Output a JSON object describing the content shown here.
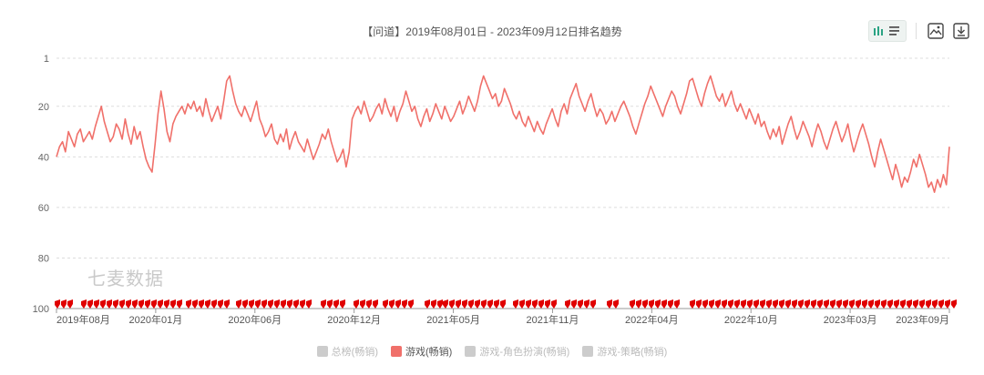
{
  "title": "【问道】2019年08月01日 - 2023年09月12日排名趋势",
  "watermark": "七麦数据",
  "toolbar": {
    "icons": [
      "bar-chart-icon",
      "list-icon",
      "save-image-icon",
      "download-icon"
    ]
  },
  "legend": [
    {
      "label": "总榜(畅销)",
      "active": false,
      "color": "#cccccc"
    },
    {
      "label": "游戏(畅销)",
      "active": true,
      "color": "#f0706a"
    },
    {
      "label": "游戏-角色扮演(畅销)",
      "active": false,
      "color": "#cccccc"
    },
    {
      "label": "游戏-策略(畅销)",
      "active": false,
      "color": "#cccccc"
    }
  ],
  "chart_data": {
    "type": "line",
    "y_inverted": true,
    "ylim": [
      1,
      100
    ],
    "yticks": [
      1,
      20,
      40,
      60,
      80,
      100
    ],
    "xticks": [
      "2019年08月",
      "2020年01月",
      "2020年06月",
      "2020年12月",
      "2021年05月",
      "2021年11月",
      "2022年04月",
      "2022年10月",
      "2023年03月",
      "2023年09月"
    ],
    "series": [
      {
        "name": "游戏(畅销)",
        "color": "#f0706a",
        "values": [
          40,
          36,
          34,
          38,
          30,
          33,
          36,
          31,
          29,
          34,
          32,
          30,
          33,
          28,
          24,
          20,
          26,
          30,
          34,
          32,
          27,
          29,
          33,
          25,
          31,
          35,
          28,
          33,
          30,
          36,
          41,
          44,
          46,
          35,
          23,
          14,
          21,
          30,
          34,
          27,
          24,
          22,
          20,
          23,
          19,
          21,
          18,
          22,
          20,
          24,
          17,
          22,
          26,
          23,
          20,
          25,
          18,
          10,
          8,
          14,
          19,
          22,
          24,
          20,
          23,
          26,
          22,
          18,
          25,
          28,
          32,
          30,
          27,
          33,
          35,
          31,
          34,
          29,
          37,
          33,
          30,
          34,
          36,
          38,
          33,
          37,
          41,
          38,
          35,
          31,
          33,
          29,
          34,
          38,
          42,
          40,
          37,
          44,
          38,
          25,
          22,
          20,
          23,
          18,
          22,
          26,
          24,
          21,
          19,
          23,
          17,
          21,
          24,
          20,
          26,
          22,
          19,
          14,
          18,
          22,
          20,
          25,
          28,
          24,
          21,
          26,
          23,
          19,
          22,
          25,
          20,
          23,
          26,
          24,
          21,
          18,
          23,
          20,
          16,
          19,
          22,
          18,
          12,
          8,
          11,
          14,
          17,
          15,
          20,
          18,
          13,
          16,
          19,
          23,
          25,
          22,
          26,
          28,
          24,
          27,
          30,
          26,
          29,
          31,
          27,
          24,
          21,
          25,
          28,
          22,
          19,
          23,
          17,
          14,
          11,
          16,
          19,
          22,
          18,
          15,
          20,
          24,
          21,
          23,
          27,
          25,
          22,
          26,
          23,
          20,
          18,
          21,
          24,
          28,
          31,
          27,
          23,
          19,
          16,
          12,
          15,
          18,
          21,
          24,
          20,
          17,
          14,
          16,
          20,
          23,
          19,
          15,
          10,
          9,
          13,
          17,
          20,
          15,
          11,
          8,
          12,
          16,
          18,
          15,
          20,
          17,
          14,
          19,
          22,
          19,
          22,
          25,
          21,
          24,
          27,
          23,
          28,
          26,
          30,
          33,
          29,
          32,
          28,
          35,
          31,
          27,
          24,
          29,
          33,
          30,
          26,
          29,
          32,
          36,
          31,
          27,
          30,
          34,
          37,
          33,
          29,
          26,
          30,
          34,
          31,
          27,
          33,
          38,
          34,
          30,
          27,
          31,
          35,
          40,
          44,
          38,
          33,
          37,
          41,
          45,
          49,
          43,
          47,
          52,
          48,
          50,
          46,
          41,
          44,
          39,
          43,
          47,
          52,
          50,
          54,
          49,
          52,
          47,
          51,
          36
        ]
      }
    ]
  },
  "markers": {
    "label": "游戏(畅销)",
    "color": "#e00000",
    "groups": [
      [
        60,
        76
      ],
      [
        89,
        199
      ],
      [
        204,
        249
      ],
      [
        259,
        341
      ],
      [
        352,
        377
      ],
      [
        388,
        412
      ],
      [
        420,
        452
      ],
      [
        466,
        480
      ],
      [
        486,
        555
      ],
      [
        563,
        608
      ],
      [
        620,
        653
      ],
      [
        666,
        679
      ],
      [
        691,
        744
      ],
      [
        757,
        1047
      ]
    ]
  }
}
